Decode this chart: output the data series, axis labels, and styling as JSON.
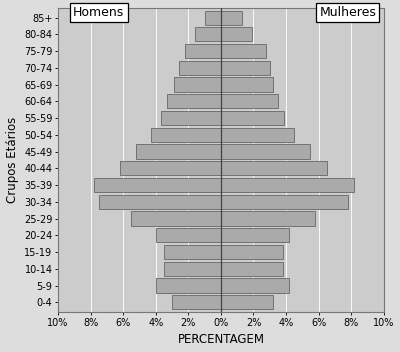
{
  "age_groups": [
    "0-4",
    "5-9",
    "10-14",
    "15-19",
    "20-24",
    "25-29",
    "30-34",
    "35-39",
    "40-44",
    "45-49",
    "50-54",
    "55-59",
    "60-64",
    "65-69",
    "70-74",
    "75-79",
    "80-84",
    "85+"
  ],
  "men": [
    3.0,
    4.0,
    3.5,
    3.5,
    4.0,
    5.5,
    7.5,
    7.8,
    6.2,
    5.2,
    4.3,
    3.7,
    3.3,
    2.9,
    2.6,
    2.2,
    1.6,
    1.0
  ],
  "women": [
    3.2,
    4.2,
    3.8,
    3.8,
    4.2,
    5.8,
    7.8,
    8.2,
    6.5,
    5.5,
    4.5,
    3.9,
    3.5,
    3.2,
    3.0,
    2.8,
    1.9,
    1.3
  ],
  "bar_color": "#aaaaaa",
  "bar_edge_color": "#555555",
  "bg_color": "#dddddd",
  "plot_bg_color": "#cccccc",
  "xlabel": "PERCENTAGEM",
  "ylabel": "Crupos Etários",
  "label_men": "Homens",
  "label_women": "Mulheres",
  "xlim": 10,
  "xtick_labels": [
    "10%",
    "8%",
    "6%",
    "4%",
    "2%",
    "0%",
    "2%",
    "4%",
    "6%",
    "8%",
    "10%"
  ],
  "xtick_values": [
    -10,
    -8,
    -6,
    -4,
    -2,
    0,
    2,
    4,
    6,
    8,
    10
  ],
  "tick_fontsize": 7.0,
  "label_fontsize": 8.5,
  "legend_fontsize": 9.0
}
